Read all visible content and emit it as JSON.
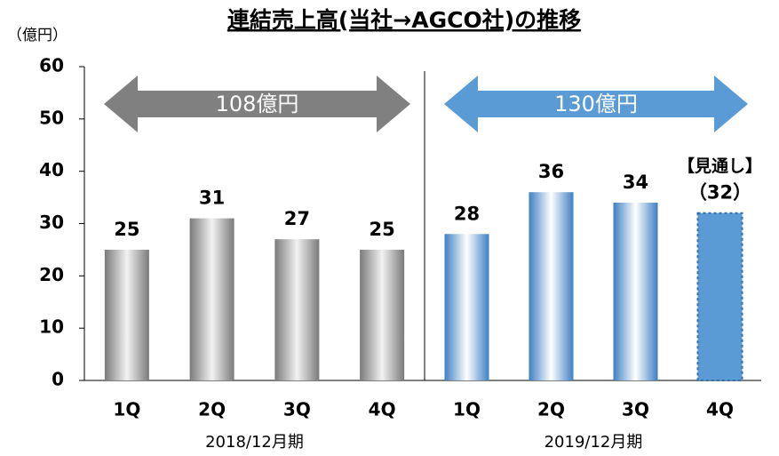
{
  "chart_data": {
    "type": "bar",
    "title": "連結売上高(当社→AGCO社)の推移",
    "y_unit": "（億円）",
    "ylim": [
      0,
      60
    ],
    "yticks": [
      0,
      10,
      20,
      30,
      40,
      50,
      60
    ],
    "groups": [
      {
        "name": "2018/12月期",
        "categories": [
          "1Q",
          "2Q",
          "3Q",
          "4Q"
        ],
        "values": [
          25,
          31,
          27,
          25
        ],
        "value_labels": [
          "25",
          "31",
          "27",
          "25"
        ],
        "arrow_label": "108億円",
        "color": "#808080",
        "fill_styles": [
          "gradient",
          "gradient",
          "gradient",
          "gradient"
        ]
      },
      {
        "name": "2019/12月期",
        "categories": [
          "1Q",
          "2Q",
          "3Q",
          "4Q"
        ],
        "values": [
          28,
          36,
          34,
          32
        ],
        "value_labels": [
          "28",
          "36",
          "34",
          "（32）"
        ],
        "arrow_label": "130億円",
        "color": "#5b9bd5",
        "fill_styles": [
          "gradient",
          "gradient",
          "gradient",
          "forecast"
        ],
        "forecast_annotation": "【見通し】"
      }
    ]
  }
}
